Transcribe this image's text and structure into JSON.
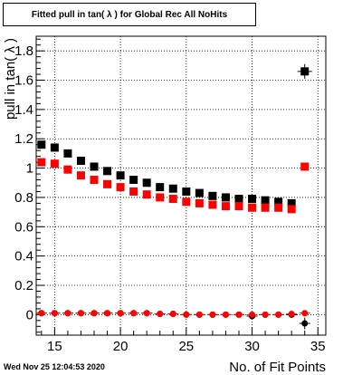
{
  "chart_data": {
    "type": "scatter",
    "title": "Fitted pull in tan( λ ) for Global Rec All NoHits",
    "xlabel": "No. of Fit Points",
    "ylabel": "pull in tan( λ )",
    "xlim": [
      13.6,
      35.6
    ],
    "ylim": [
      -0.14,
      1.9
    ],
    "xticks": [
      15,
      20,
      25,
      30,
      35
    ],
    "yticks": [
      0,
      0.2,
      0.4,
      0.6,
      0.8,
      1,
      1.2,
      1.4,
      1.6,
      1.8
    ],
    "yticklabels": [
      "0",
      "0.2",
      "0.4",
      "0.6",
      "0.8",
      "1",
      "1.2",
      "1.4",
      "1.6",
      "1.8"
    ],
    "grid": true,
    "series": [
      {
        "color": "#000000",
        "marker": "square",
        "x": [
          14,
          15,
          16,
          17,
          18,
          19,
          20,
          21,
          22,
          23,
          24,
          25,
          26,
          27,
          28,
          29,
          30,
          31,
          32,
          33,
          34
        ],
        "y": [
          1.16,
          1.14,
          1.1,
          1.05,
          1.01,
          0.98,
          0.95,
          0.92,
          0.9,
          0.87,
          0.86,
          0.84,
          0.83,
          0.81,
          0.8,
          0.79,
          0.79,
          0.78,
          0.77,
          0.76,
          1.66
        ],
        "yerr": [
          0,
          0,
          0,
          0,
          0,
          0,
          0,
          0,
          0,
          0,
          0,
          0,
          0,
          0,
          0,
          0,
          0,
          0,
          0,
          0,
          0.05
        ]
      },
      {
        "color": "#ff0000",
        "marker": "square",
        "x": [
          14,
          15,
          16,
          17,
          18,
          19,
          20,
          21,
          22,
          23,
          24,
          25,
          26,
          27,
          28,
          29,
          30,
          31,
          32,
          33,
          34
        ],
        "y": [
          1.04,
          1.03,
          0.99,
          0.95,
          0.92,
          0.89,
          0.87,
          0.84,
          0.82,
          0.8,
          0.79,
          0.77,
          0.76,
          0.75,
          0.74,
          0.74,
          0.73,
          0.73,
          0.73,
          0.72,
          1.01
        ],
        "yerr": [
          0,
          0,
          0,
          0,
          0,
          0,
          0,
          0,
          0,
          0,
          0,
          0,
          0,
          0,
          0,
          0,
          0,
          0,
          0,
          0,
          0
        ]
      },
      {
        "color": "#000000",
        "marker": "circle",
        "x": [
          14,
          15,
          16,
          17,
          18,
          19,
          20,
          21,
          22,
          23,
          24,
          25,
          26,
          27,
          28,
          29,
          30,
          31,
          32,
          33,
          34
        ],
        "y": [
          0.01,
          0.01,
          0.01,
          0.01,
          0.01,
          0.01,
          0.01,
          0.01,
          0.01,
          0.005,
          0.005,
          0.0,
          0.0,
          0.0,
          0.0,
          0.0,
          -0.01,
          0.0,
          0.0,
          0.0,
          -0.06
        ],
        "yerr": [
          0.012,
          0.012,
          0.012,
          0.012,
          0.012,
          0.012,
          0.012,
          0.012,
          0.012,
          0.012,
          0.012,
          0.012,
          0.012,
          0.012,
          0.012,
          0.012,
          0.012,
          0.012,
          0.012,
          0.012,
          0.04
        ]
      },
      {
        "color": "#ff0000",
        "marker": "circle",
        "x": [
          14,
          15,
          16,
          17,
          18,
          19,
          20,
          21,
          22,
          23,
          24,
          25,
          26,
          27,
          28,
          29,
          30,
          31,
          32,
          33,
          34
        ],
        "y": [
          0.01,
          0.01,
          0.01,
          0.01,
          0.01,
          0.01,
          0.01,
          0.01,
          0.01,
          0.005,
          0.005,
          0.0,
          0.0,
          0.0,
          0.0,
          0.0,
          0.0,
          0.0,
          0.0,
          0.005,
          0.01
        ],
        "yerr": [
          0.012,
          0.012,
          0.012,
          0.012,
          0.012,
          0.012,
          0.012,
          0.012,
          0.012,
          0.012,
          0.012,
          0.012,
          0.012,
          0.012,
          0.012,
          0.012,
          0.012,
          0.012,
          0.012,
          0.012,
          0.02
        ]
      }
    ]
  },
  "footer": {
    "timestamp": "Wed Nov 25 12:04:53 2020"
  }
}
